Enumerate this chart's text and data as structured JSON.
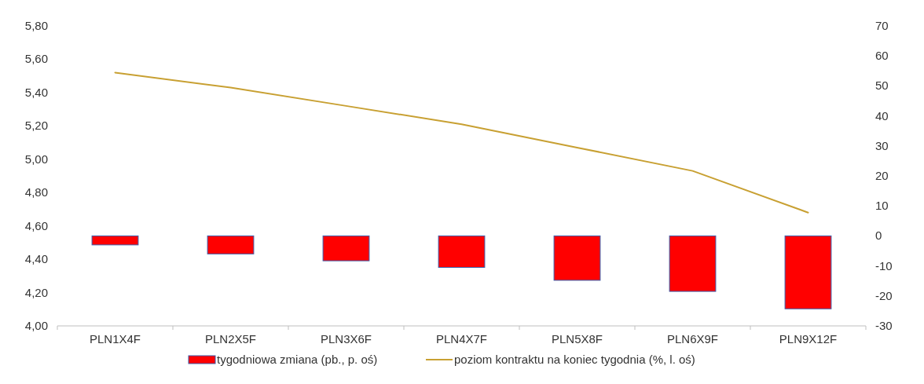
{
  "chart_data": {
    "type": "bar",
    "categories": [
      "PLN1X4F",
      "PLN2X5F",
      "PLN3X6F",
      "PLN4X7F",
      "PLN5X8F",
      "PLN6X9F",
      "PLN9X12F"
    ],
    "series": [
      {
        "name": "tygodniowa zmiana (pb., p. oś)",
        "axis": "y2",
        "color": "#ff0000",
        "values": [
          -3,
          -6,
          -8.3,
          -10.5,
          -14.8,
          -18.5,
          -24.3
        ]
      },
      {
        "name": "poziom kontraktu na koniec tygodnia (%, l. oś)",
        "type": "line",
        "color": "#c8a032",
        "values": [
          5.52,
          5.43,
          5.32,
          5.21,
          5.07,
          4.93,
          4.68
        ]
      }
    ],
    "ylim": [
      4,
      5.8
    ],
    "yticks": [
      {
        "value": 4,
        "label": "4,00"
      },
      {
        "value": 4.2,
        "label": "4,20"
      },
      {
        "value": 4.4,
        "label": "4,40"
      },
      {
        "value": 4.6,
        "label": "4,60"
      },
      {
        "value": 4.8,
        "label": "4,80"
      },
      {
        "value": 5,
        "label": "5,00"
      },
      {
        "value": 5.2,
        "label": "5,20"
      },
      {
        "value": 5.4,
        "label": "5,40"
      },
      {
        "value": 5.6,
        "label": "5,60"
      },
      {
        "value": 5.8,
        "label": "5,80"
      }
    ],
    "y2lim": [
      -30,
      70
    ],
    "y2ticks": [
      -30,
      -20,
      -10,
      0,
      10,
      20,
      30,
      40,
      50,
      60,
      70
    ],
    "legend": "bottom",
    "grid": false
  }
}
